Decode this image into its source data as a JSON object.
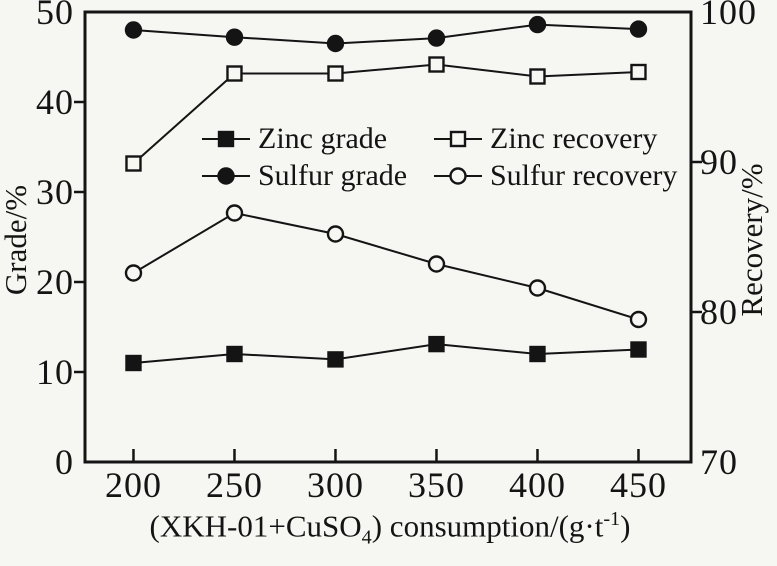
{
  "figure_background": "#f6f6f3",
  "ink_color": "#141414",
  "chart_data": {
    "type": "line",
    "title": "",
    "xlabel_parts": {
      "pre": "(XKH-01+CuSO",
      "sub": "4",
      "mid": ") consumption/(g·t",
      "sup": "-1",
      "post": ")"
    },
    "ylabel_left": "Grade/%",
    "ylabel_right": "Recovery/%",
    "x": [
      200,
      250,
      300,
      350,
      400,
      450
    ],
    "axes": {
      "x_domain": [
        176,
        476
      ],
      "x_ticks": [
        200,
        250,
        300,
        350,
        400,
        450
      ],
      "left": {
        "range": [
          0,
          50
        ],
        "ticks": [
          0,
          10,
          20,
          30,
          40,
          50
        ]
      },
      "right": {
        "range": [
          70,
          100
        ],
        "ticks": [
          70,
          80,
          90,
          100
        ]
      }
    },
    "grid": false,
    "legend_position": "inside-upper-middle",
    "legend_rows": [
      [
        "Zinc grade",
        "Zinc recovery"
      ],
      [
        "Sulfur grade",
        "Sulfur recovery"
      ]
    ],
    "series": [
      {
        "name": "Zinc grade",
        "axis": "left",
        "marker": "square-filled",
        "values": [
          11.0,
          12.0,
          11.4,
          13.1,
          12.0,
          12.5
        ]
      },
      {
        "name": "Sulfur grade",
        "axis": "left",
        "marker": "circle-filled",
        "values": [
          48.0,
          47.2,
          46.5,
          47.1,
          48.6,
          48.1
        ]
      },
      {
        "name": "Zinc recovery",
        "axis": "right",
        "marker": "square-open",
        "values": [
          89.9,
          95.9,
          95.9,
          96.5,
          95.7,
          96.0
        ]
      },
      {
        "name": "Sulfur recovery",
        "axis": "right",
        "marker": "circle-open",
        "values": [
          82.6,
          86.6,
          85.2,
          83.2,
          81.6,
          79.5
        ]
      }
    ]
  }
}
